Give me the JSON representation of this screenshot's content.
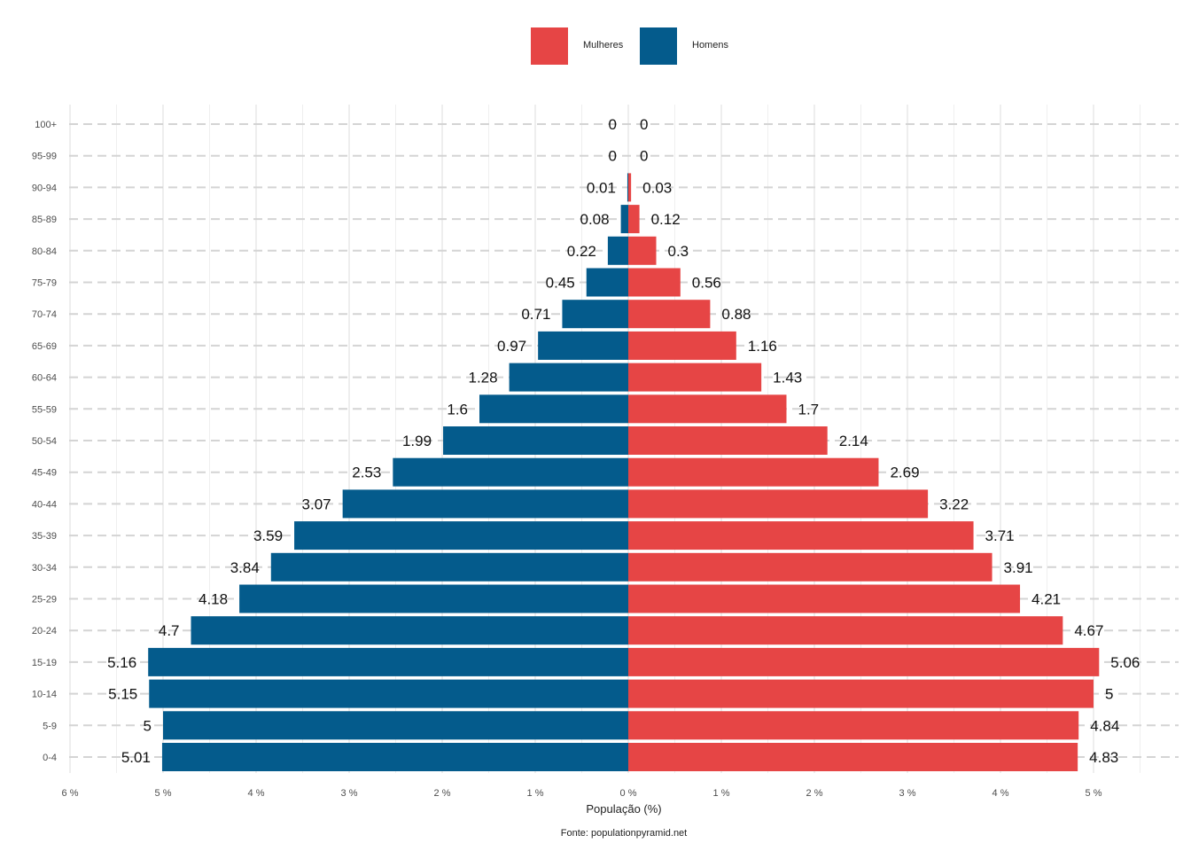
{
  "chart_data": {
    "type": "bar",
    "orientation": "horizontal",
    "subtype": "population-pyramid",
    "title": "",
    "xlabel": "População (%)",
    "ylabel": "",
    "caption": "Fonte: populationpyramid.net",
    "xlim": [
      -6,
      5.5
    ],
    "x_ticks": [
      {
        "value": -6,
        "label": "6 %"
      },
      {
        "value": -5,
        "label": "5 %"
      },
      {
        "value": -4,
        "label": "4 %"
      },
      {
        "value": -3,
        "label": "3 %"
      },
      {
        "value": -2,
        "label": "2 %"
      },
      {
        "value": -1,
        "label": "1 %"
      },
      {
        "value": 0,
        "label": "0 %"
      },
      {
        "value": 1,
        "label": "1 %"
      },
      {
        "value": 2,
        "label": "2 %"
      },
      {
        "value": 3,
        "label": "3 %"
      },
      {
        "value": 4,
        "label": "4 %"
      },
      {
        "value": 5,
        "label": "5 %"
      }
    ],
    "grid": true,
    "legend": {
      "position": "top",
      "entries": [
        {
          "name": "Mulheres",
          "color": "#E64545"
        },
        {
          "name": "Homens",
          "color": "#045B8C"
        }
      ]
    },
    "categories": [
      "100+",
      "95-99",
      "90-94",
      "85-89",
      "80-84",
      "75-79",
      "70-74",
      "65-69",
      "60-64",
      "55-59",
      "50-54",
      "45-49",
      "40-44",
      "35-39",
      "30-34",
      "25-29",
      "20-24",
      "15-19",
      "10-14",
      "5-9",
      "0-4"
    ],
    "series": [
      {
        "name": "Homens",
        "side": "left",
        "color": "#045B8C",
        "values": [
          0,
          0,
          0.01,
          0.08,
          0.22,
          0.45,
          0.71,
          0.97,
          1.28,
          1.6,
          1.99,
          2.53,
          3.07,
          3.59,
          3.84,
          4.18,
          4.7,
          5.16,
          5.15,
          5,
          5.01
        ]
      },
      {
        "name": "Mulheres",
        "side": "right",
        "color": "#E64545",
        "values": [
          0,
          0,
          0.03,
          0.12,
          0.3,
          0.56,
          0.88,
          1.16,
          1.43,
          1.7,
          2.14,
          2.69,
          3.22,
          3.71,
          3.91,
          4.21,
          4.67,
          5.06,
          5,
          4.84,
          4.83
        ]
      }
    ]
  }
}
